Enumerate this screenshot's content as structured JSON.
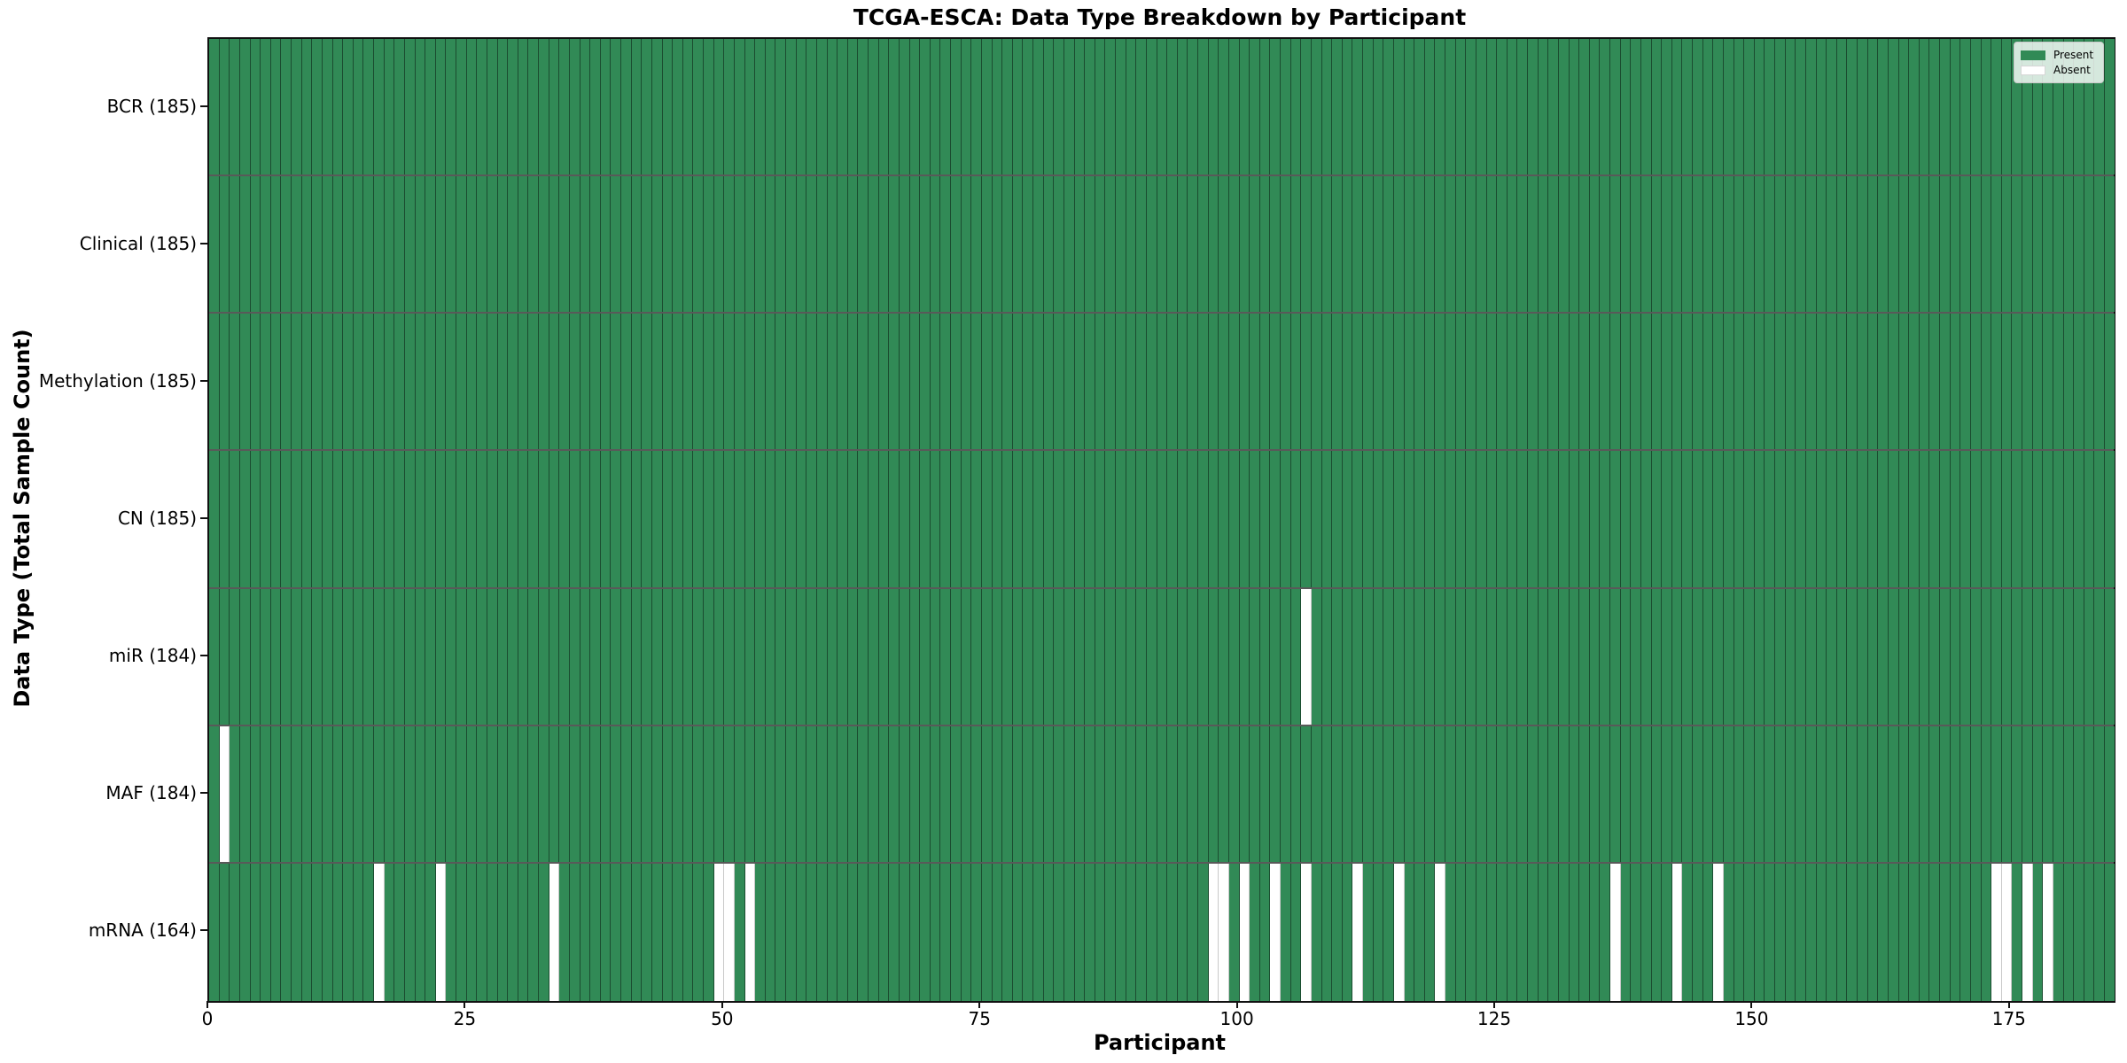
{
  "chart_data": {
    "type": "heatmap",
    "title": "TCGA-ESCA: Data Type Breakdown by Participant",
    "xlabel": "Participant",
    "ylabel": "Data Type (Total Sample Count)",
    "x_ticks": [
      0,
      25,
      50,
      75,
      100,
      125,
      150,
      175
    ],
    "x_range": [
      0,
      185
    ],
    "n_participants": 185,
    "grid": "cell-edges",
    "legend": {
      "position": "upper right",
      "entries": [
        {
          "label": "Present",
          "color": "#318a56"
        },
        {
          "label": "Absent",
          "color": "#ffffff"
        }
      ]
    },
    "rows": [
      {
        "label": "BCR (185)",
        "data_type": "BCR",
        "total_samples": 185,
        "absent_participants": []
      },
      {
        "label": "Clinical (185)",
        "data_type": "Clinical",
        "total_samples": 185,
        "absent_participants": []
      },
      {
        "label": "Methylation (185)",
        "data_type": "Methylation",
        "total_samples": 185,
        "absent_participants": []
      },
      {
        "label": "CN (185)",
        "data_type": "CN",
        "total_samples": 185,
        "absent_participants": []
      },
      {
        "label": "miR (184)",
        "data_type": "miR",
        "total_samples": 184,
        "absent_participants": [
          106
        ]
      },
      {
        "label": "MAF (184)",
        "data_type": "MAF",
        "total_samples": 184,
        "absent_participants": [
          1
        ]
      },
      {
        "label": "mRNA (164)",
        "data_type": "mRNA",
        "total_samples": 164,
        "absent_participants": [
          16,
          22,
          33,
          49,
          50,
          52,
          97,
          98,
          100,
          103,
          106,
          111,
          115,
          119,
          136,
          142,
          146,
          173,
          174,
          176,
          178
        ]
      }
    ],
    "colors": {
      "present": "#318a56",
      "absent": "#ffffff",
      "cell_edge": "#14301f",
      "row_separator": "#1a1a1a",
      "plot_border": "#111111",
      "background": "#ffffff"
    }
  }
}
